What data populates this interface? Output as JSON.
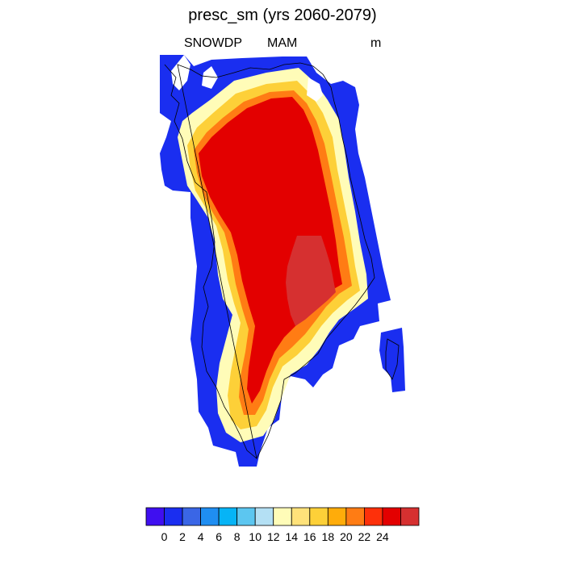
{
  "title": "presc_sm (yrs 2060-2079)",
  "subtitle_left": "SNOWDP",
  "subtitle_center": "MAM",
  "subtitle_right": "m",
  "colorbar": {
    "colors": [
      "#3f0ff0",
      "#1a2ef0",
      "#3a66e6",
      "#1f8ef2",
      "#06b4f6",
      "#5cc6f0",
      "#b4e0f4",
      "#fffcb8",
      "#ffe27a",
      "#fdd038",
      "#ffac0a",
      "#ff7c14",
      "#fe300a",
      "#e30000",
      "#d63030"
    ],
    "labels": [
      "0",
      "2",
      "4",
      "6",
      "8",
      "10",
      "12",
      "14",
      "16",
      "18",
      "20",
      "22",
      "24"
    ]
  }
}
